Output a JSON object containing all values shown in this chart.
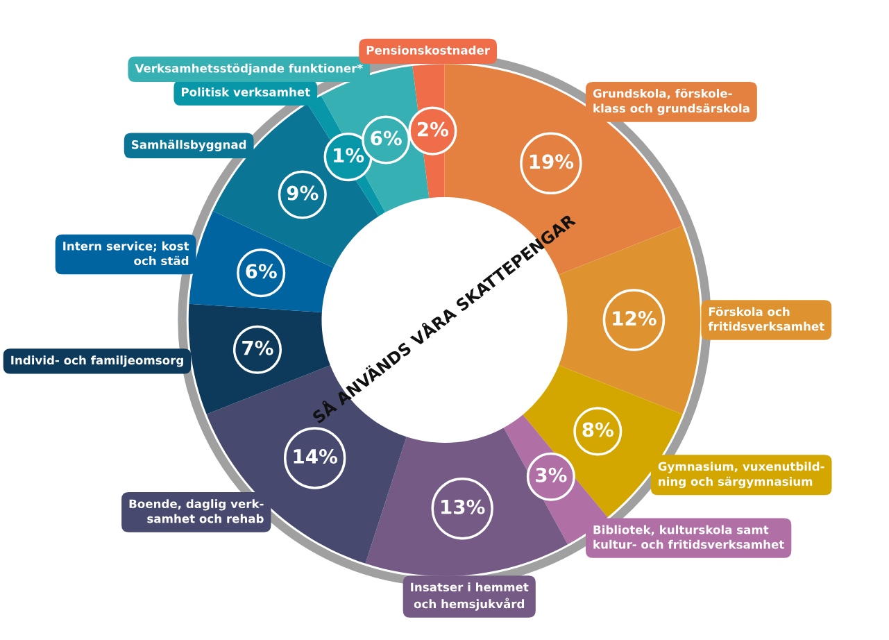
{
  "chart_data": {
    "type": "donut",
    "title": "SÅ ANVÄNDS VÅRA SKATTEPENGAR",
    "categories": [
      "Grundskola, förskole-\nklass och grundsärskola",
      "Förskola och\nfritidsverksamhet",
      "Gymnasium, vuxenutbild-\nning och särgymnasium",
      "Bibliotek, kulturskola samt\nkultur- och fritidsverksamhet",
      "Insatser i hemmet\noch hemsjukvård",
      "Boende, daglig verk-\nsamhet och rehab",
      "Individ- och familjeomsorg",
      "Intern service; kost\noch städ",
      "Samhällsbyggnad",
      "Politisk verksamhet",
      "Verksamhetsstödjande funktioner*",
      "Pensionskostnader"
    ],
    "values": [
      19,
      12,
      8,
      3,
      13,
      14,
      7,
      6,
      9,
      1,
      6,
      2
    ],
    "value_labels": [
      "19%",
      "12%",
      "8%",
      "3%",
      "13%",
      "14%",
      "7%",
      "6%",
      "9%",
      "1%",
      "6%",
      "2%"
    ],
    "colors": [
      "#e58140",
      "#de9330",
      "#d4a600",
      "#b06fa5",
      "#745a84",
      "#474a6e",
      "#0d3a5a",
      "#0064a0",
      "#0a7595",
      "#0897a8",
      "#36b0b2",
      "#f06d4a"
    ],
    "legend": false
  }
}
